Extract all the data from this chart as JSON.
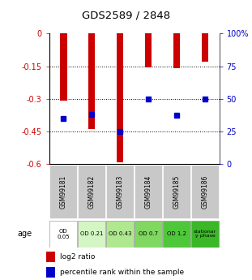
{
  "title": "GDS2589 / 2848",
  "samples": [
    "GSM99181",
    "GSM99182",
    "GSM99183",
    "GSM99184",
    "GSM99185",
    "GSM99186"
  ],
  "log2_ratios": [
    -0.31,
    -0.44,
    -0.595,
    -0.155,
    -0.16,
    -0.13
  ],
  "percentile_ranks": [
    35,
    38,
    25,
    50,
    37,
    50
  ],
  "ylim_left": [
    -0.6,
    0.0
  ],
  "ylim_right": [
    0,
    100
  ],
  "yticks_left": [
    0,
    -0.15,
    -0.3,
    -0.45,
    -0.6
  ],
  "yticks_right": [
    0,
    25,
    50,
    75,
    100
  ],
  "bar_color": "#cc0000",
  "dot_color": "#0000cc",
  "age_labels": [
    "OD\n0.05",
    "OD 0.21",
    "OD 0.43",
    "OD 0.7",
    "OD 1.2",
    "stationar\ny phase"
  ],
  "age_colors": [
    "#ffffff",
    "#d4f5c4",
    "#b0e890",
    "#80d860",
    "#4ec83a",
    "#3ab828"
  ],
  "sample_bg_color": "#c8c8c8",
  "legend_labels": [
    "log2 ratio",
    "percentile rank within the sample"
  ],
  "left_tick_color": "#cc0000",
  "right_tick_color": "#0000cc",
  "bar_width": 0.25,
  "dot_size": 25,
  "gridlines": [
    -0.15,
    -0.3,
    -0.45
  ]
}
